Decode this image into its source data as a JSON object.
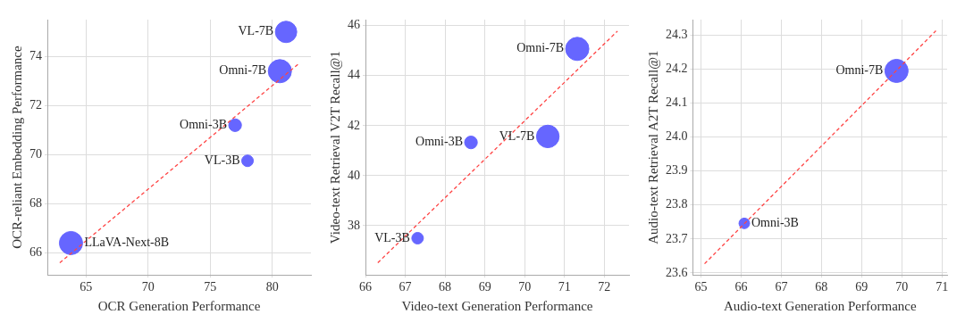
{
  "chart_data": [
    {
      "type": "bubble",
      "xlabel": "OCR Generation Performance",
      "ylabel": "OCR-reliant Embedding Performance",
      "xlim": [
        61.9,
        83.1
      ],
      "ylim": [
        65.1,
        75.5
      ],
      "xticks": [
        65,
        70,
        75,
        80
      ],
      "yticks": [
        66,
        68,
        70,
        72,
        74
      ],
      "grid": true,
      "legend": false,
      "series": [
        {
          "color": "#6666ff",
          "x": [
            81.1,
            80.6,
            77.0,
            78.0,
            63.8
          ],
          "values": [
            75.0,
            73.4,
            71.2,
            69.75,
            66.4
          ],
          "sizes": [
            0.85,
            1,
            0.3,
            0.25,
            1
          ]
        },
        {
          "type": "line",
          "color": "#ff4444",
          "line_style": "dashed",
          "marker": "none",
          "x": [
            62.9,
            82.1
          ],
          "values": [
            65.6,
            73.7
          ]
        }
      ],
      "annotations": [
        {
          "text": "VL-7B",
          "x": 81.1,
          "y": 75.0
        },
        {
          "text": "Omni-7B",
          "x": 80.6,
          "y": 73.4
        },
        {
          "text": "Omni-3B",
          "x": 77.0,
          "y": 71.2
        },
        {
          "text": "VL-3B",
          "x": 78.0,
          "y": 69.75
        },
        {
          "text": "LLaVA-Next-8B",
          "x": 63.8,
          "y": 66.4
        }
      ]
    },
    {
      "type": "bubble",
      "xlabel": "Video-text Generation Performance",
      "ylabel": "Video-text Retrieval V2T Recall@1",
      "xlim": [
        66,
        72.62
      ],
      "ylim": [
        36.03,
        46.24
      ],
      "xticks": [
        66,
        67,
        68,
        69,
        70,
        71,
        72
      ],
      "yticks": [
        38,
        40,
        42,
        44,
        46
      ],
      "grid": true,
      "legend": false,
      "series": [
        {
          "color": "#6666ff",
          "x": [
            71.32,
            70.58,
            68.65,
            67.31
          ],
          "values": [
            45.07,
            41.57,
            41.33,
            37.5
          ],
          "sizes": [
            1,
            0.95,
            0.3,
            0.25
          ]
        },
        {
          "type": "line",
          "color": "#ff4444",
          "line_style": "dashed",
          "marker": "none",
          "x": [
            66.31,
            72.33
          ],
          "values": [
            36.52,
            45.78
          ]
        }
      ],
      "annotations": [
        {
          "text": "Omni-7B",
          "x": 71.32,
          "y": 45.07
        },
        {
          "text": "VL-7B",
          "x": 70.58,
          "y": 41.57
        },
        {
          "text": "Omni-3B",
          "x": 68.65,
          "y": 41.33
        },
        {
          "text": "VL-3B",
          "x": 67.31,
          "y": 37.5
        }
      ]
    },
    {
      "type": "bubble",
      "xlabel": "Audio-text Generation Performance",
      "ylabel": "Audio-text Retrieval A2T Recall@1",
      "xlim": [
        64.8,
        71.13
      ],
      "ylim": [
        23.594,
        24.346
      ],
      "xticks": [
        65,
        66,
        67,
        68,
        69,
        70,
        71
      ],
      "yticks": [
        23.6,
        23.7,
        23.8,
        23.9,
        {
          "value": 24,
          "label": "24.0"
        },
        24.1,
        24.2,
        24.3
      ],
      "grid": true,
      "legend": false,
      "series": [
        {
          "color": "#6666ff",
          "x": [
            69.87,
            66.08
          ],
          "values": [
            24.195,
            23.746
          ],
          "sizes": [
            1,
            0.21
          ]
        },
        {
          "type": "line",
          "color": "#ff4444",
          "line_style": "dashed",
          "marker": "none",
          "x": [
            65.09,
            70.85
          ],
          "values": [
            23.627,
            24.313
          ]
        }
      ],
      "annotations": [
        {
          "text": "Omni-7B",
          "x": 69.87,
          "y": 24.195
        },
        {
          "text": "Omni-3B",
          "x": 66.08,
          "y": 23.746
        }
      ]
    }
  ]
}
